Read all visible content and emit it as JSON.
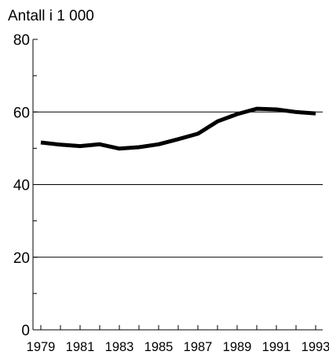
{
  "chart_data": {
    "type": "line",
    "title": "",
    "unit_label": "Antall i 1 000",
    "xlabel": "",
    "ylabel": "",
    "ylim": [
      0,
      80
    ],
    "xlim": [
      1979,
      1993
    ],
    "y_ticks": [
      "0",
      "20",
      "40",
      "60",
      "80"
    ],
    "x_tick_labels": [
      "1979",
      "1981",
      "1983",
      "1985",
      "1987",
      "1989",
      "1991",
      "1993"
    ],
    "x_tick_values": [
      1979,
      1981,
      1983,
      1985,
      1987,
      1989,
      1991,
      1993
    ],
    "grid": "horizontal major lines at 20, 40, 60",
    "legend": "none",
    "line_color": "#000000",
    "series": [
      {
        "x": [
          1979,
          1980,
          1981,
          1982,
          1983,
          1984,
          1985,
          1986,
          1987,
          1988,
          1989,
          1990,
          1991,
          1992,
          1993
        ],
        "values": [
          51.6,
          51.0,
          50.6,
          51.1,
          49.9,
          50.3,
          51.1,
          52.5,
          54.0,
          57.4,
          59.4,
          60.9,
          60.7,
          60.0,
          59.6
        ]
      }
    ]
  }
}
